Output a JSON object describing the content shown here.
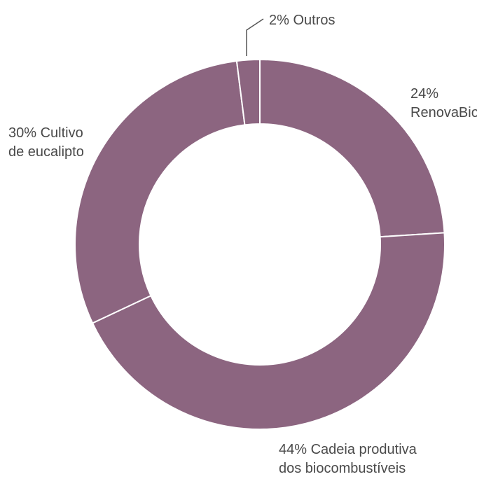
{
  "chart_data": {
    "type": "pie",
    "donut": true,
    "title": "",
    "slice_color": "#8c6580",
    "separator_color": "#ffffff",
    "background_color": "#ffffff",
    "label_color": "#4a4a4a",
    "slices": [
      {
        "label_lines": [
          "24%",
          "RenovaBio"
        ],
        "value": 24,
        "label_position": "right-top"
      },
      {
        "label_lines": [
          "44% Cadeia produtiva",
          "dos biocombustíveis"
        ],
        "value": 44,
        "label_position": "bottom"
      },
      {
        "label_lines": [
          "30% Cultivo",
          "de eucalipto"
        ],
        "value": 30,
        "label_position": "left-top"
      },
      {
        "label_lines": [
          "2% Outros"
        ],
        "value": 2,
        "label_position": "top"
      }
    ]
  }
}
